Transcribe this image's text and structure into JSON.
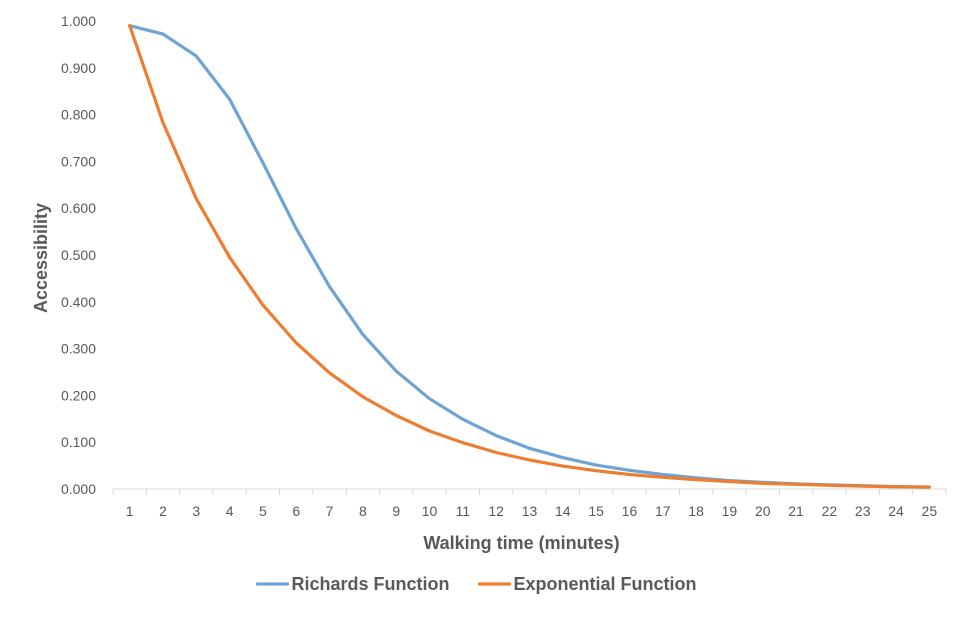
{
  "chart_data": {
    "type": "line",
    "title": "",
    "xlabel": "Walking time (minutes)",
    "ylabel": "Accessibility",
    "x": [
      1,
      2,
      3,
      4,
      5,
      6,
      7,
      8,
      9,
      10,
      11,
      12,
      13,
      14,
      15,
      16,
      17,
      18,
      19,
      20,
      21,
      22,
      23,
      24,
      25
    ],
    "xticks": [
      "1",
      "2",
      "3",
      "4",
      "5",
      "6",
      "7",
      "8",
      "9",
      "10",
      "11",
      "12",
      "13",
      "14",
      "15",
      "16",
      "17",
      "18",
      "19",
      "20",
      "21",
      "22",
      "23",
      "24",
      "25"
    ],
    "yticks": [
      "0.000",
      "0.100",
      "0.200",
      "0.300",
      "0.400",
      "0.500",
      "0.600",
      "0.700",
      "0.800",
      "0.900",
      "1.000"
    ],
    "ylim": [
      0,
      1
    ],
    "grid": false,
    "legend_position": "bottom",
    "series": [
      {
        "name": "Richards Function",
        "color": "#6FA3D3",
        "values": [
          0.99,
          0.972,
          0.925,
          0.833,
          0.697,
          0.556,
          0.432,
          0.33,
          0.252,
          0.193,
          0.149,
          0.114,
          0.087,
          0.067,
          0.051,
          0.04,
          0.031,
          0.024,
          0.018,
          0.014,
          0.011,
          0.009,
          0.007,
          0.005,
          0.004
        ]
      },
      {
        "name": "Exponential Function",
        "color": "#ED7D31",
        "values": [
          0.99,
          0.783,
          0.62,
          0.495,
          0.393,
          0.312,
          0.248,
          0.197,
          0.157,
          0.124,
          0.099,
          0.078,
          0.062,
          0.049,
          0.039,
          0.031,
          0.025,
          0.02,
          0.016,
          0.012,
          0.01,
          0.008,
          0.006,
          0.005,
          0.004
        ]
      }
    ]
  }
}
